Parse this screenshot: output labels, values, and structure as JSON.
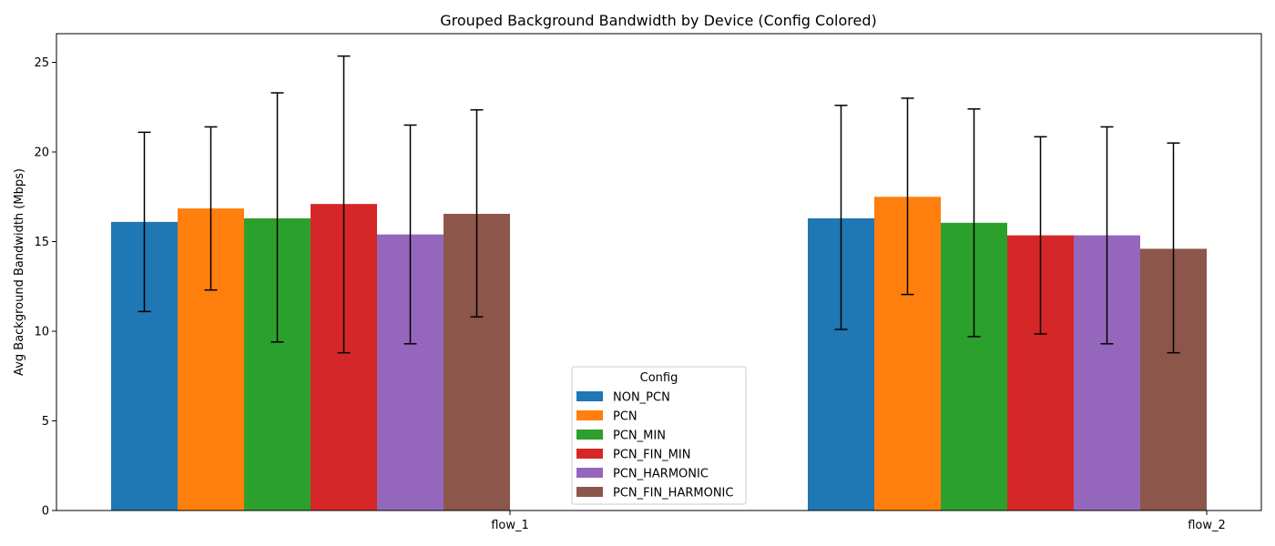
{
  "chart_data": {
    "type": "bar",
    "title": "Grouped Background Bandwidth by Device (Config Colored)",
    "xlabel": "",
    "ylabel": "Avg Background Bandwidth (Mbps)",
    "categories": [
      "flow_1",
      "flow_2"
    ],
    "ylim": [
      0,
      26.6
    ],
    "yticks": [
      0,
      5,
      10,
      15,
      20,
      25
    ],
    "grid": false,
    "legend_title": "Config",
    "legend_position": "lower-center",
    "series": [
      {
        "name": "NON_PCN",
        "color": "#1f77b4",
        "values": [
          16.1,
          16.3
        ],
        "err_low": [
          11.1,
          10.1
        ],
        "err_high": [
          21.1,
          22.6
        ]
      },
      {
        "name": "PCN",
        "color": "#ff7f0e",
        "values": [
          16.85,
          17.5
        ],
        "err_low": [
          12.3,
          12.05
        ],
        "err_high": [
          21.4,
          23.0
        ]
      },
      {
        "name": "PCN_MIN",
        "color": "#2ca02c",
        "values": [
          16.3,
          16.05
        ],
        "err_low": [
          9.4,
          9.7
        ],
        "err_high": [
          23.3,
          22.4
        ]
      },
      {
        "name": "PCN_FIN_MIN",
        "color": "#d62728",
        "values": [
          17.1,
          15.35
        ],
        "err_low": [
          8.8,
          9.85
        ],
        "err_high": [
          25.35,
          20.85
        ]
      },
      {
        "name": "PCN_HARMONIC",
        "color": "#9467bd",
        "values": [
          15.4,
          15.35
        ],
        "err_low": [
          9.3,
          9.3
        ],
        "err_high": [
          21.5,
          21.4
        ]
      },
      {
        "name": "PCN_FIN_HARMONIC",
        "color": "#8c564b",
        "values": [
          16.55,
          14.6
        ],
        "err_low": [
          10.8,
          8.8
        ],
        "err_high": [
          22.35,
          20.5
        ]
      }
    ]
  }
}
